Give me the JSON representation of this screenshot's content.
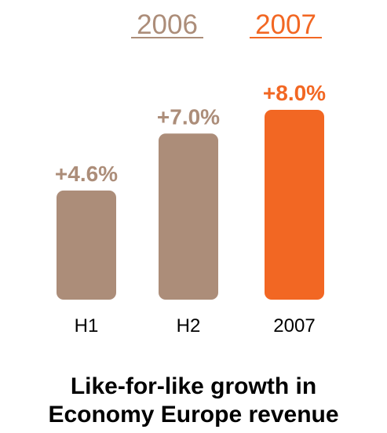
{
  "chart_data": {
    "type": "bar",
    "categories": [
      "H1",
      "H2",
      "2007"
    ],
    "values": [
      4.6,
      7.0,
      8.0
    ],
    "data_labels": [
      "+4.6%",
      "+7.0%",
      "+8.0%"
    ],
    "bar_colors": [
      "#ac8d79",
      "#ac8d79",
      "#f26723"
    ],
    "legend": [
      {
        "label": "2006",
        "color": "#ac8d79"
      },
      {
        "label": "2007",
        "color": "#f26723"
      }
    ],
    "legend_placement": "top",
    "title_lines": [
      "Like-for-like growth in",
      "Economy Europe revenue"
    ],
    "xlabel": "",
    "ylabel": "",
    "ylim": [
      0,
      8.0
    ],
    "grid": false,
    "y_axis_visible": false
  }
}
